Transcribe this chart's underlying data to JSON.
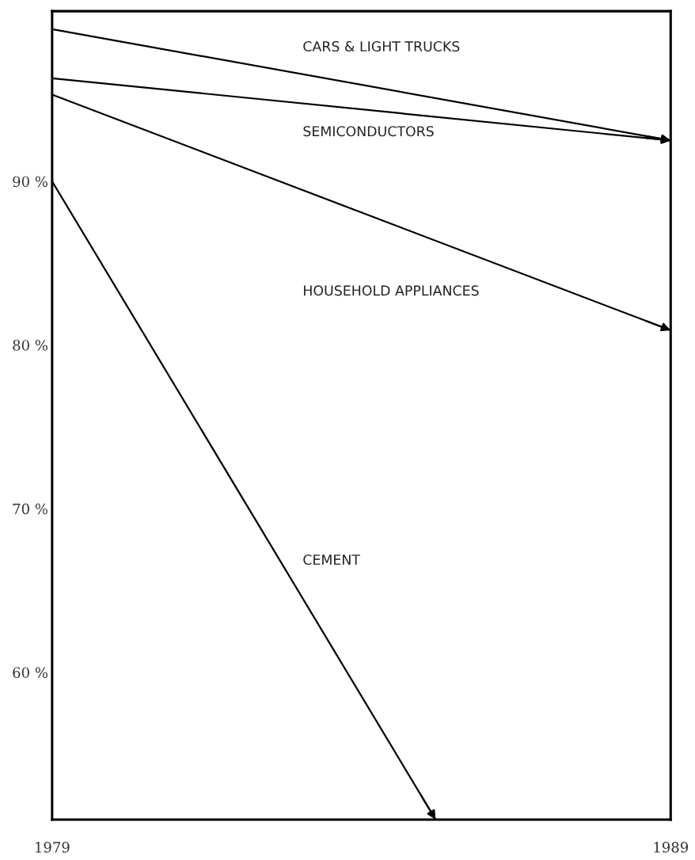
{
  "chart_data": {
    "type": "line",
    "x": [
      1979,
      1989
    ],
    "series": [
      {
        "name": "CARS & LIGHT TRUCKS",
        "color": "#000000",
        "values": [
          99.3,
          92.5
        ]
      },
      {
        "name": "SEMICONDUCTORS",
        "color": "#000000",
        "values": [
          96.3,
          92.5
        ]
      },
      {
        "name": "HOUSEHOLD APPLIANCES",
        "color": "#000000",
        "values": [
          95.3,
          80.9
        ]
      },
      {
        "name": "CEMENT",
        "color": "#000000",
        "x": [
          1979,
          1985.2
        ],
        "values": [
          90,
          51
        ]
      }
    ],
    "xlim": [
      1979,
      1989
    ],
    "xticks": [
      1979,
      1989
    ],
    "ylim": [
      51,
      100.4
    ],
    "yticks": [
      {
        "value": 60,
        "label": "60 %"
      },
      {
        "value": 70,
        "label": "70 %"
      },
      {
        "value": 80,
        "label": "80 %"
      },
      {
        "value": 90,
        "label": "90 %"
      }
    ],
    "grid": false,
    "legend": false,
    "marker": "none",
    "line_style": "solid"
  }
}
